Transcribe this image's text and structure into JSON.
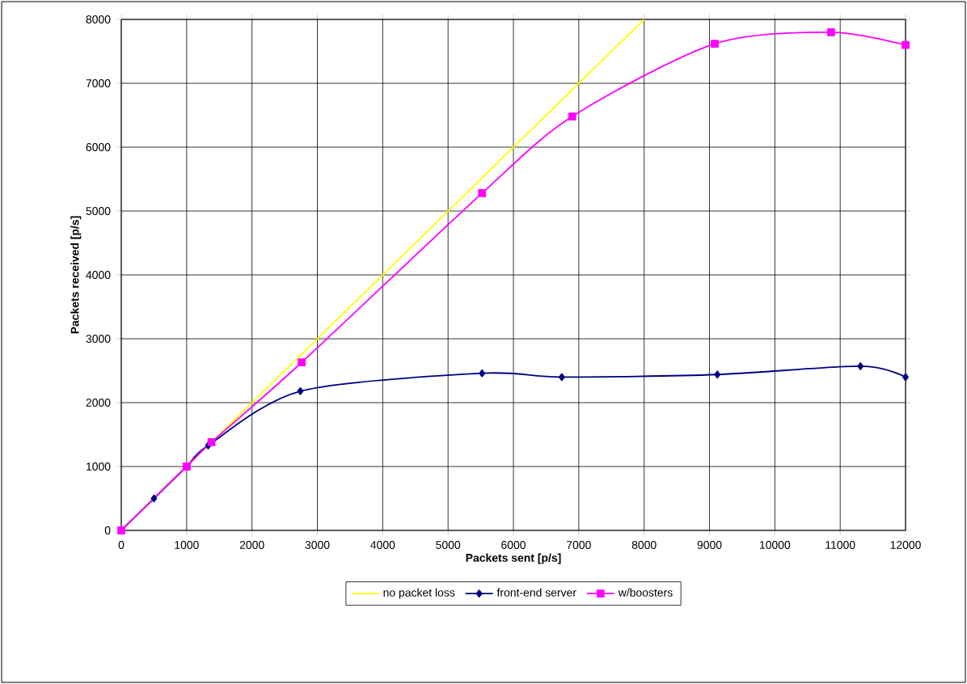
{
  "chart_data": {
    "type": "line",
    "xlabel": "Packets sent [p/s]",
    "ylabel": "Packets received [p/s]",
    "xlim": [
      0,
      12000
    ],
    "ylim": [
      0,
      8000
    ],
    "xticks": [
      0,
      1000,
      2000,
      3000,
      4000,
      5000,
      6000,
      7000,
      8000,
      9000,
      10000,
      11000,
      12000
    ],
    "yticks": [
      0,
      1000,
      2000,
      3000,
      4000,
      5000,
      6000,
      7000,
      8000
    ],
    "grid": true,
    "legend": "bottom",
    "line_style": "solid",
    "series": [
      {
        "name": "no packet loss",
        "color": "#ffff00",
        "marker": "none",
        "x": [
          0,
          8000
        ],
        "values": [
          0,
          8000
        ]
      },
      {
        "name": "front-end server",
        "color": "#000080",
        "marker": "diamond",
        "x": [
          0,
          500,
          1000,
          1330,
          2740,
          5520,
          6740,
          9120,
          11310,
          12000
        ],
        "values": [
          0,
          500,
          1000,
          1330,
          2180,
          2460,
          2400,
          2440,
          2570,
          2400
        ]
      },
      {
        "name": "w/boosters",
        "color": "#ff00ff",
        "marker": "square",
        "x": [
          0,
          1000,
          1380,
          2760,
          5520,
          6900,
          9080,
          10860,
          12000
        ],
        "values": [
          0,
          1000,
          1380,
          2630,
          5280,
          6480,
          7620,
          7800,
          7600
        ]
      }
    ]
  }
}
